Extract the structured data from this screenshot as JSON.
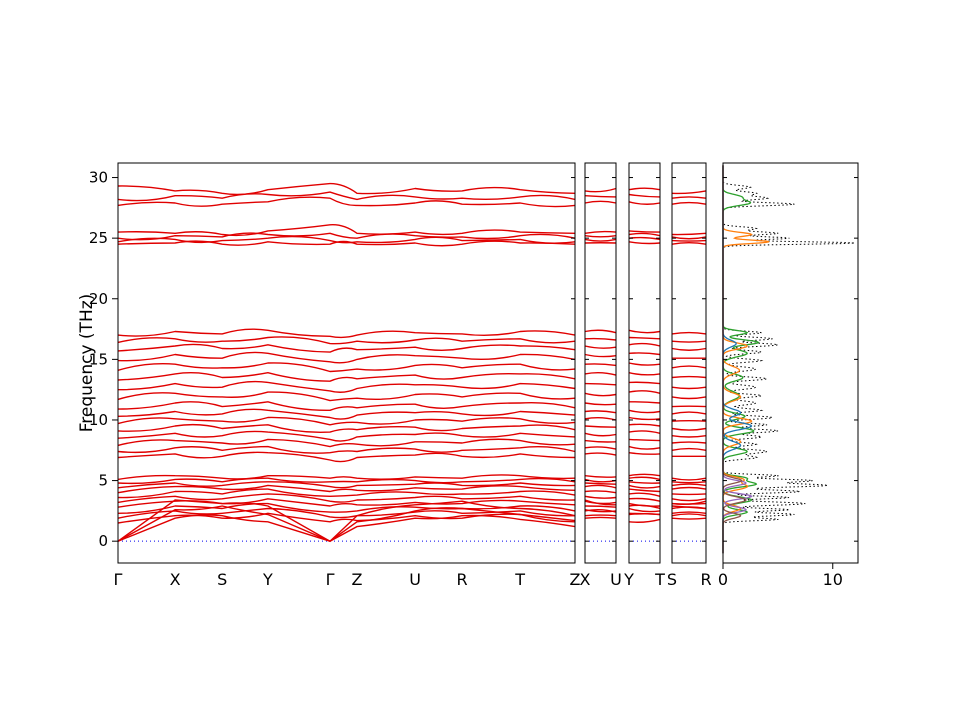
{
  "figure": {
    "background": "#ffffff"
  },
  "chart_data": {
    "type": "line",
    "subtype": "phonon-band-structure-with-dos",
    "title": "",
    "ylabel": "Frequency (THz)",
    "y_ticks": [
      0,
      5,
      10,
      15,
      20,
      25,
      30
    ],
    "ylim": [
      -1.8,
      31.2
    ],
    "band_color": "#e00000",
    "zero_line_color": "#0000ee",
    "panels": [
      {
        "name": "main",
        "k_labels": [
          "Γ",
          "X",
          "S",
          "Y",
          "Γ",
          "Z",
          "U",
          "R",
          "T",
          "Z"
        ],
        "k_positions": [
          0,
          0.125,
          0.228,
          0.328,
          0.464,
          0.523,
          0.65,
          0.753,
          0.88,
          1
        ]
      },
      {
        "name": "XU",
        "k_labels": [
          "X",
          "U"
        ],
        "node_indices": [
          1,
          6
        ]
      },
      {
        "name": "YT",
        "k_labels": [
          "Y",
          "T"
        ],
        "node_indices": [
          3,
          8
        ]
      },
      {
        "name": "SR",
        "k_labels": [
          "S",
          "R"
        ],
        "node_indices": [
          2,
          7
        ]
      }
    ],
    "bands": [
      [
        0.0,
        1.9,
        2.1,
        1.6,
        0.0,
        1.2,
        1.9,
        2.1,
        1.8,
        1.2
      ],
      [
        0.0,
        2.6,
        2.9,
        2.2,
        0.0,
        1.6,
        2.5,
        2.7,
        2.2,
        1.6
      ],
      [
        0.0,
        3.4,
        3.1,
        2.9,
        0.0,
        2.1,
        3.0,
        3.3,
        2.7,
        2.1
      ],
      [
        1.5,
        2.1,
        1.9,
        2.3,
        1.6,
        1.7,
        2.1,
        1.9,
        2.2,
        1.7
      ],
      [
        1.9,
        2.5,
        2.3,
        2.7,
        2.0,
        2.1,
        2.4,
        2.3,
        2.5,
        2.1
      ],
      [
        2.3,
        2.9,
        2.7,
        3.1,
        2.4,
        2.5,
        2.8,
        2.7,
        2.9,
        2.5
      ],
      [
        2.8,
        3.3,
        3.1,
        3.5,
        2.9,
        3.0,
        3.2,
        3.1,
        3.3,
        3.0
      ],
      [
        3.2,
        3.7,
        3.5,
        3.9,
        3.3,
        3.4,
        3.6,
        3.5,
        3.7,
        3.4
      ],
      [
        3.6,
        4.1,
        3.9,
        4.3,
        3.7,
        3.8,
        4.0,
        3.9,
        4.1,
        3.8
      ],
      [
        4.0,
        4.5,
        4.3,
        4.6,
        4.1,
        4.2,
        4.4,
        4.3,
        4.5,
        4.2
      ],
      [
        4.4,
        4.8,
        4.6,
        4.9,
        4.5,
        4.6,
        4.7,
        4.6,
        4.8,
        4.6
      ],
      [
        4.8,
        5.1,
        4.9,
        5.2,
        4.9,
        4.9,
        5.0,
        4.9,
        5.1,
        4.9
      ],
      [
        5.1,
        5.4,
        5.2,
        5.4,
        5.2,
        5.2,
        5.3,
        5.2,
        5.4,
        5.2
      ],
      [
        6.9,
        7.2,
        7.0,
        7.3,
        6.7,
        6.9,
        7.1,
        7.0,
        7.2,
        6.9
      ],
      [
        7.4,
        7.7,
        7.5,
        7.8,
        7.3,
        7.4,
        7.6,
        7.5,
        7.7,
        7.4
      ],
      [
        7.9,
        8.3,
        8.1,
        8.4,
        7.8,
        8.0,
        8.2,
        8.1,
        8.3,
        8.0
      ],
      [
        8.5,
        8.9,
        8.7,
        9.0,
        8.4,
        8.6,
        8.8,
        8.7,
        8.9,
        8.6
      ],
      [
        9.1,
        9.5,
        9.3,
        9.6,
        9.0,
        9.2,
        9.4,
        9.3,
        9.5,
        9.2
      ],
      [
        9.7,
        10.1,
        9.9,
        10.2,
        9.6,
        9.8,
        10.0,
        9.9,
        10.1,
        9.8
      ],
      [
        10.3,
        10.7,
        10.5,
        10.8,
        10.2,
        10.4,
        10.6,
        10.5,
        10.7,
        10.4
      ],
      [
        10.9,
        11.4,
        11.1,
        11.5,
        10.8,
        11.0,
        11.3,
        11.1,
        11.4,
        11.0
      ],
      [
        11.7,
        12.2,
        11.9,
        12.3,
        11.6,
        11.8,
        12.1,
        11.9,
        12.2,
        11.8
      ],
      [
        12.5,
        13.0,
        12.7,
        13.1,
        12.4,
        12.6,
        12.9,
        12.7,
        13.0,
        12.6
      ],
      [
        13.3,
        13.8,
        13.5,
        13.9,
        13.2,
        13.4,
        13.7,
        13.5,
        13.8,
        13.4
      ],
      [
        14.1,
        14.6,
        14.3,
        14.7,
        14.0,
        14.2,
        14.5,
        14.3,
        14.6,
        14.2
      ],
      [
        14.9,
        15.4,
        15.1,
        15.5,
        14.8,
        15.0,
        15.3,
        15.1,
        15.4,
        15.0
      ],
      [
        15.7,
        16.1,
        15.9,
        16.2,
        15.6,
        15.8,
        16.0,
        15.9,
        16.1,
        15.8
      ],
      [
        16.4,
        16.7,
        16.5,
        16.8,
        16.3,
        16.5,
        16.6,
        16.5,
        16.7,
        16.5
      ],
      [
        17.0,
        17.3,
        17.1,
        17.4,
        16.9,
        17.0,
        17.2,
        17.1,
        17.3,
        17.0
      ],
      [
        24.5,
        24.6,
        24.5,
        24.7,
        24.5,
        24.5,
        24.6,
        24.5,
        24.6,
        24.5
      ],
      [
        24.7,
        24.9,
        24.8,
        25.0,
        24.8,
        24.7,
        24.9,
        24.8,
        24.9,
        24.7
      ],
      [
        25.0,
        25.2,
        25.1,
        25.3,
        25.4,
        25.0,
        25.2,
        25.1,
        25.2,
        25.0
      ],
      [
        25.5,
        25.4,
        25.3,
        25.6,
        26.1,
        25.4,
        25.5,
        25.4,
        25.5,
        25.4
      ],
      [
        27.7,
        27.9,
        27.8,
        28.0,
        28.3,
        27.7,
        27.9,
        27.8,
        27.9,
        27.7
      ],
      [
        28.2,
        28.5,
        28.3,
        28.6,
        28.8,
        28.2,
        28.4,
        28.3,
        28.4,
        28.2
      ],
      [
        29.3,
        28.9,
        28.7,
        29.0,
        29.5,
        28.7,
        29.1,
        28.9,
        29.0,
        28.7
      ]
    ],
    "dos": {
      "x_ticks": [
        0,
        10
      ],
      "xlim": [
        0,
        12.3
      ],
      "series": [
        {
          "name": "total",
          "color": "#000000",
          "style": "dotted",
          "peaks": [
            [
              1.8,
              5,
              0.15
            ],
            [
              2.2,
              6.5,
              0.18
            ],
            [
              2.6,
              6,
              0.15
            ],
            [
              3.1,
              7.5,
              0.2
            ],
            [
              3.6,
              6,
              0.15
            ],
            [
              4.1,
              7,
              0.18
            ],
            [
              4.6,
              9.5,
              0.2
            ],
            [
              5.0,
              8,
              0.18
            ],
            [
              5.4,
              5,
              0.15
            ],
            [
              6.9,
              3,
              0.2
            ],
            [
              7.4,
              4,
              0.25
            ],
            [
              8.0,
              3,
              0.2
            ],
            [
              8.6,
              3.5,
              0.2
            ],
            [
              9.1,
              5,
              0.2
            ],
            [
              9.6,
              4,
              0.18
            ],
            [
              10.2,
              4.5,
              0.2
            ],
            [
              10.8,
              3.5,
              0.2
            ],
            [
              11.4,
              3,
              0.25
            ],
            [
              12.0,
              3.5,
              0.2
            ],
            [
              12.7,
              3,
              0.25
            ],
            [
              13.4,
              4,
              0.2
            ],
            [
              14.2,
              3,
              0.25
            ],
            [
              14.9,
              3.5,
              0.2
            ],
            [
              15.6,
              3.5,
              0.2
            ],
            [
              16.2,
              5,
              0.2
            ],
            [
              16.7,
              4.5,
              0.18
            ],
            [
              17.2,
              3.5,
              0.18
            ],
            [
              24.6,
              12,
              0.15
            ],
            [
              25.0,
              6,
              0.15
            ],
            [
              25.4,
              5,
              0.18
            ],
            [
              25.8,
              3,
              0.18
            ],
            [
              27.8,
              6.5,
              0.18
            ],
            [
              28.3,
              4,
              0.2
            ],
            [
              28.7,
              3,
              0.2
            ],
            [
              29.2,
              2.5,
              0.2
            ]
          ]
        },
        {
          "name": "partial-green",
          "color": "#2ca02c",
          "style": "solid",
          "peaks": [
            [
              2.4,
              2.2,
              0.3
            ],
            [
              3.4,
              2.6,
              0.35
            ],
            [
              4.7,
              3,
              0.3
            ],
            [
              5.2,
              2,
              0.25
            ],
            [
              7.4,
              2.2,
              0.35
            ],
            [
              9.1,
              2.8,
              0.35
            ],
            [
              10.3,
              2,
              0.35
            ],
            [
              12.0,
              1.5,
              0.5
            ],
            [
              13.5,
              1.8,
              0.4
            ],
            [
              15.5,
              2.2,
              0.4
            ],
            [
              16.4,
              3.2,
              0.3
            ],
            [
              17.2,
              2.2,
              0.25
            ],
            [
              27.9,
              2.4,
              0.3
            ],
            [
              28.4,
              1.6,
              0.3
            ]
          ]
        },
        {
          "name": "partial-orange",
          "color": "#ff7f0e",
          "style": "solid",
          "peaks": [
            [
              2.7,
              1.6,
              0.35
            ],
            [
              4.5,
              2.2,
              0.35
            ],
            [
              5.1,
              1.8,
              0.3
            ],
            [
              8.2,
              1.6,
              0.4
            ],
            [
              9.9,
              2.6,
              0.35
            ],
            [
              11.9,
              1.6,
              0.45
            ],
            [
              14.1,
              1.5,
              0.45
            ],
            [
              16.1,
              2.2,
              0.35
            ],
            [
              24.7,
              4.2,
              0.2
            ],
            [
              25.3,
              2.6,
              0.25
            ]
          ]
        },
        {
          "name": "partial-blue",
          "color": "#1f77b4",
          "style": "solid",
          "peaks": [
            [
              7.9,
              1.6,
              0.45
            ],
            [
              9.5,
              2.6,
              0.4
            ],
            [
              10.6,
              1.6,
              0.4
            ],
            [
              16.3,
              1.2,
              0.4
            ]
          ]
        },
        {
          "name": "partial-purple",
          "color": "#9467bd",
          "style": "solid",
          "peaks": [
            [
              2.6,
              2.1,
              0.3
            ],
            [
              3.7,
              2.6,
              0.3
            ],
            [
              4.8,
              2.1,
              0.3
            ]
          ]
        },
        {
          "name": "partial-brown",
          "color": "#8c564b",
          "style": "solid",
          "peaks": [
            [
              2.1,
              1.6,
              0.3
            ],
            [
              3.4,
              2.1,
              0.35
            ],
            [
              5.0,
              1.7,
              0.3
            ]
          ]
        }
      ]
    }
  }
}
